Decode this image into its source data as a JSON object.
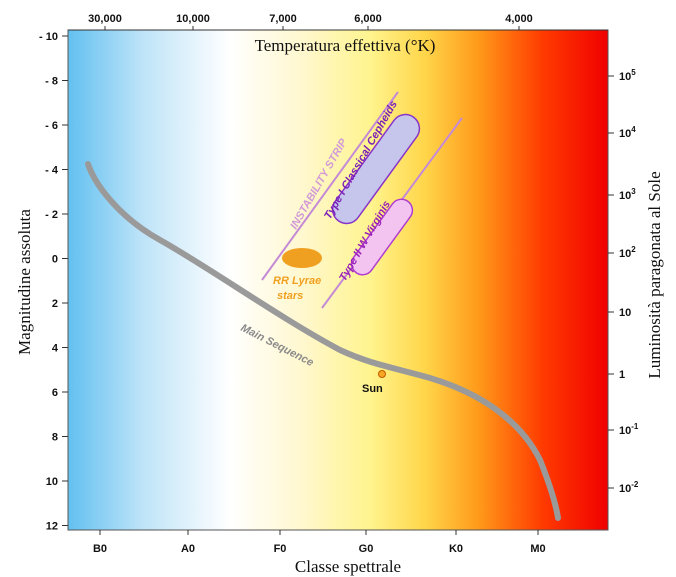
{
  "diagram": {
    "top_axis": {
      "title": "Temperatura effettiva (°K)",
      "ticks": [
        "30,000",
        "10,000",
        "7,000",
        "6,000",
        "4,000"
      ]
    },
    "left_axis": {
      "title": "Magnitudine assoluta",
      "ticks": [
        "- 10",
        "- 8",
        "- 6",
        "- 4",
        "- 2",
        "0",
        "2",
        "4",
        "6",
        "8",
        "10",
        "12"
      ]
    },
    "bottom_axis": {
      "title": "Classe spettrale",
      "ticks": [
        "B0",
        "A0",
        "F0",
        "G0",
        "K0",
        "M0"
      ]
    },
    "right_axis": {
      "title": "Luminosità paragonata al Sole",
      "ticks": [
        {
          "base": "10",
          "exp": "5"
        },
        {
          "base": "10",
          "exp": "4"
        },
        {
          "base": "10",
          "exp": "3"
        },
        {
          "base": "10",
          "exp": "2"
        },
        {
          "base": "10",
          "exp": ""
        },
        {
          "base": "1",
          "exp": ""
        },
        {
          "base": "10",
          "exp": "-1"
        },
        {
          "base": "10",
          "exp": "-2"
        }
      ]
    },
    "labels": {
      "instability_strip": "INSTABILITY STRIP",
      "cepheids": "Type I Classical Cepheids",
      "w_virginis": "Type II W Virginis",
      "rr_lyrae_1": "RR Lyrae",
      "rr_lyrae_2": "stars",
      "main_sequence": "Main Sequence",
      "sun": "Sun"
    },
    "colors": {
      "main_sequence": "#9a9a9a",
      "instability_lines": "#c58ad6",
      "cepheid_fill": "#c6c6ec",
      "cepheid_stroke": "#8a35c8",
      "wvir_fill": "#f4c4f0",
      "wvir_stroke": "#b03dd0",
      "rr_lyrae": "#f0a020",
      "sun": "#f5a623"
    }
  }
}
